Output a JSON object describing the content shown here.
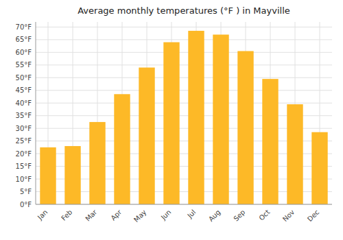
{
  "chart_data": {
    "type": "bar",
    "title": "Average monthly temperatures (°F ) in Mayville",
    "categories": [
      "Jan",
      "Feb",
      "Mar",
      "Apr",
      "May",
      "Jun",
      "Jul",
      "Aug",
      "Sep",
      "Oct",
      "Nov",
      "Dec"
    ],
    "values": [
      22.5,
      23.0,
      32.5,
      43.5,
      54.0,
      64.0,
      68.5,
      67.0,
      60.5,
      49.5,
      39.5,
      28.5
    ],
    "color": "#FDB927",
    "ylim": [
      0,
      72
    ],
    "yticks": [
      {
        "value": 0,
        "label": "0°F"
      },
      {
        "value": 5,
        "label": "5°F"
      },
      {
        "value": 10,
        "label": "10°F"
      },
      {
        "value": 15,
        "label": "15°F"
      },
      {
        "value": 20,
        "label": "20°F"
      },
      {
        "value": 25,
        "label": "25°F"
      },
      {
        "value": 30,
        "label": "30°F"
      },
      {
        "value": 35,
        "label": "35°F"
      },
      {
        "value": 40,
        "label": "40°F"
      },
      {
        "value": 45,
        "label": "45°F"
      },
      {
        "value": 50,
        "label": "50°F"
      },
      {
        "value": 55,
        "label": "55°F"
      },
      {
        "value": 60,
        "label": "60°F"
      },
      {
        "value": 65,
        "label": "65°F"
      },
      {
        "value": 70,
        "label": "70°F"
      }
    ],
    "grid": true
  }
}
